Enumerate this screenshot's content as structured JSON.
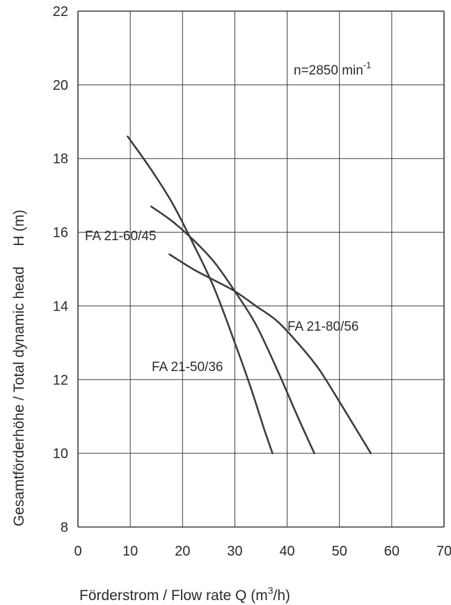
{
  "chart_data": {
    "type": "line",
    "title": "",
    "annotation": "n=2850 min-1",
    "annotation_main": "n=2850 min",
    "annotation_sup": "-1",
    "xlabel": "Förderstrom / Flow rate     Q (m³/h)",
    "xlabel_main": "Förderstrom / Flow rate     Q (m",
    "xlabel_sup": "3",
    "xlabel_end": "/h)",
    "ylabel": "Gesamtförderhöhe / Total dynamic head     H (m)",
    "xlim": [
      0,
      70
    ],
    "ylim": [
      8,
      22
    ],
    "xticks": [
      "0",
      "10",
      "20",
      "30",
      "40",
      "50",
      "60",
      "70"
    ],
    "yticks": [
      "8",
      "10",
      "12",
      "14",
      "16",
      "18",
      "20",
      "22"
    ],
    "grid": true,
    "series": [
      {
        "name": "FA 21-50/36",
        "x": [
          9.5,
          14,
          18,
          22,
          26,
          30,
          33,
          35.5,
          37.2
        ],
        "y": [
          18.6,
          17.7,
          16.8,
          15.7,
          14.5,
          13.0,
          11.8,
          10.7,
          10.0
        ]
      },
      {
        "name": "FA 21-60/45",
        "x": [
          14,
          18,
          22,
          26,
          30,
          34,
          38,
          42,
          45.2
        ],
        "y": [
          16.7,
          16.3,
          15.8,
          15.2,
          14.4,
          13.5,
          12.3,
          11.0,
          10.0
        ]
      },
      {
        "name": "FA 21-80/56",
        "x": [
          17.5,
          22,
          26,
          30,
          34,
          38,
          42,
          46,
          50,
          53,
          56
        ],
        "y": [
          15.4,
          15.0,
          14.7,
          14.4,
          14.0,
          13.6,
          13.0,
          12.3,
          11.4,
          10.7,
          10.0
        ]
      }
    ]
  },
  "colors": {
    "grid": "#3a3a3a",
    "curve": "#3d3d3d",
    "text": "#2a2a2a"
  }
}
